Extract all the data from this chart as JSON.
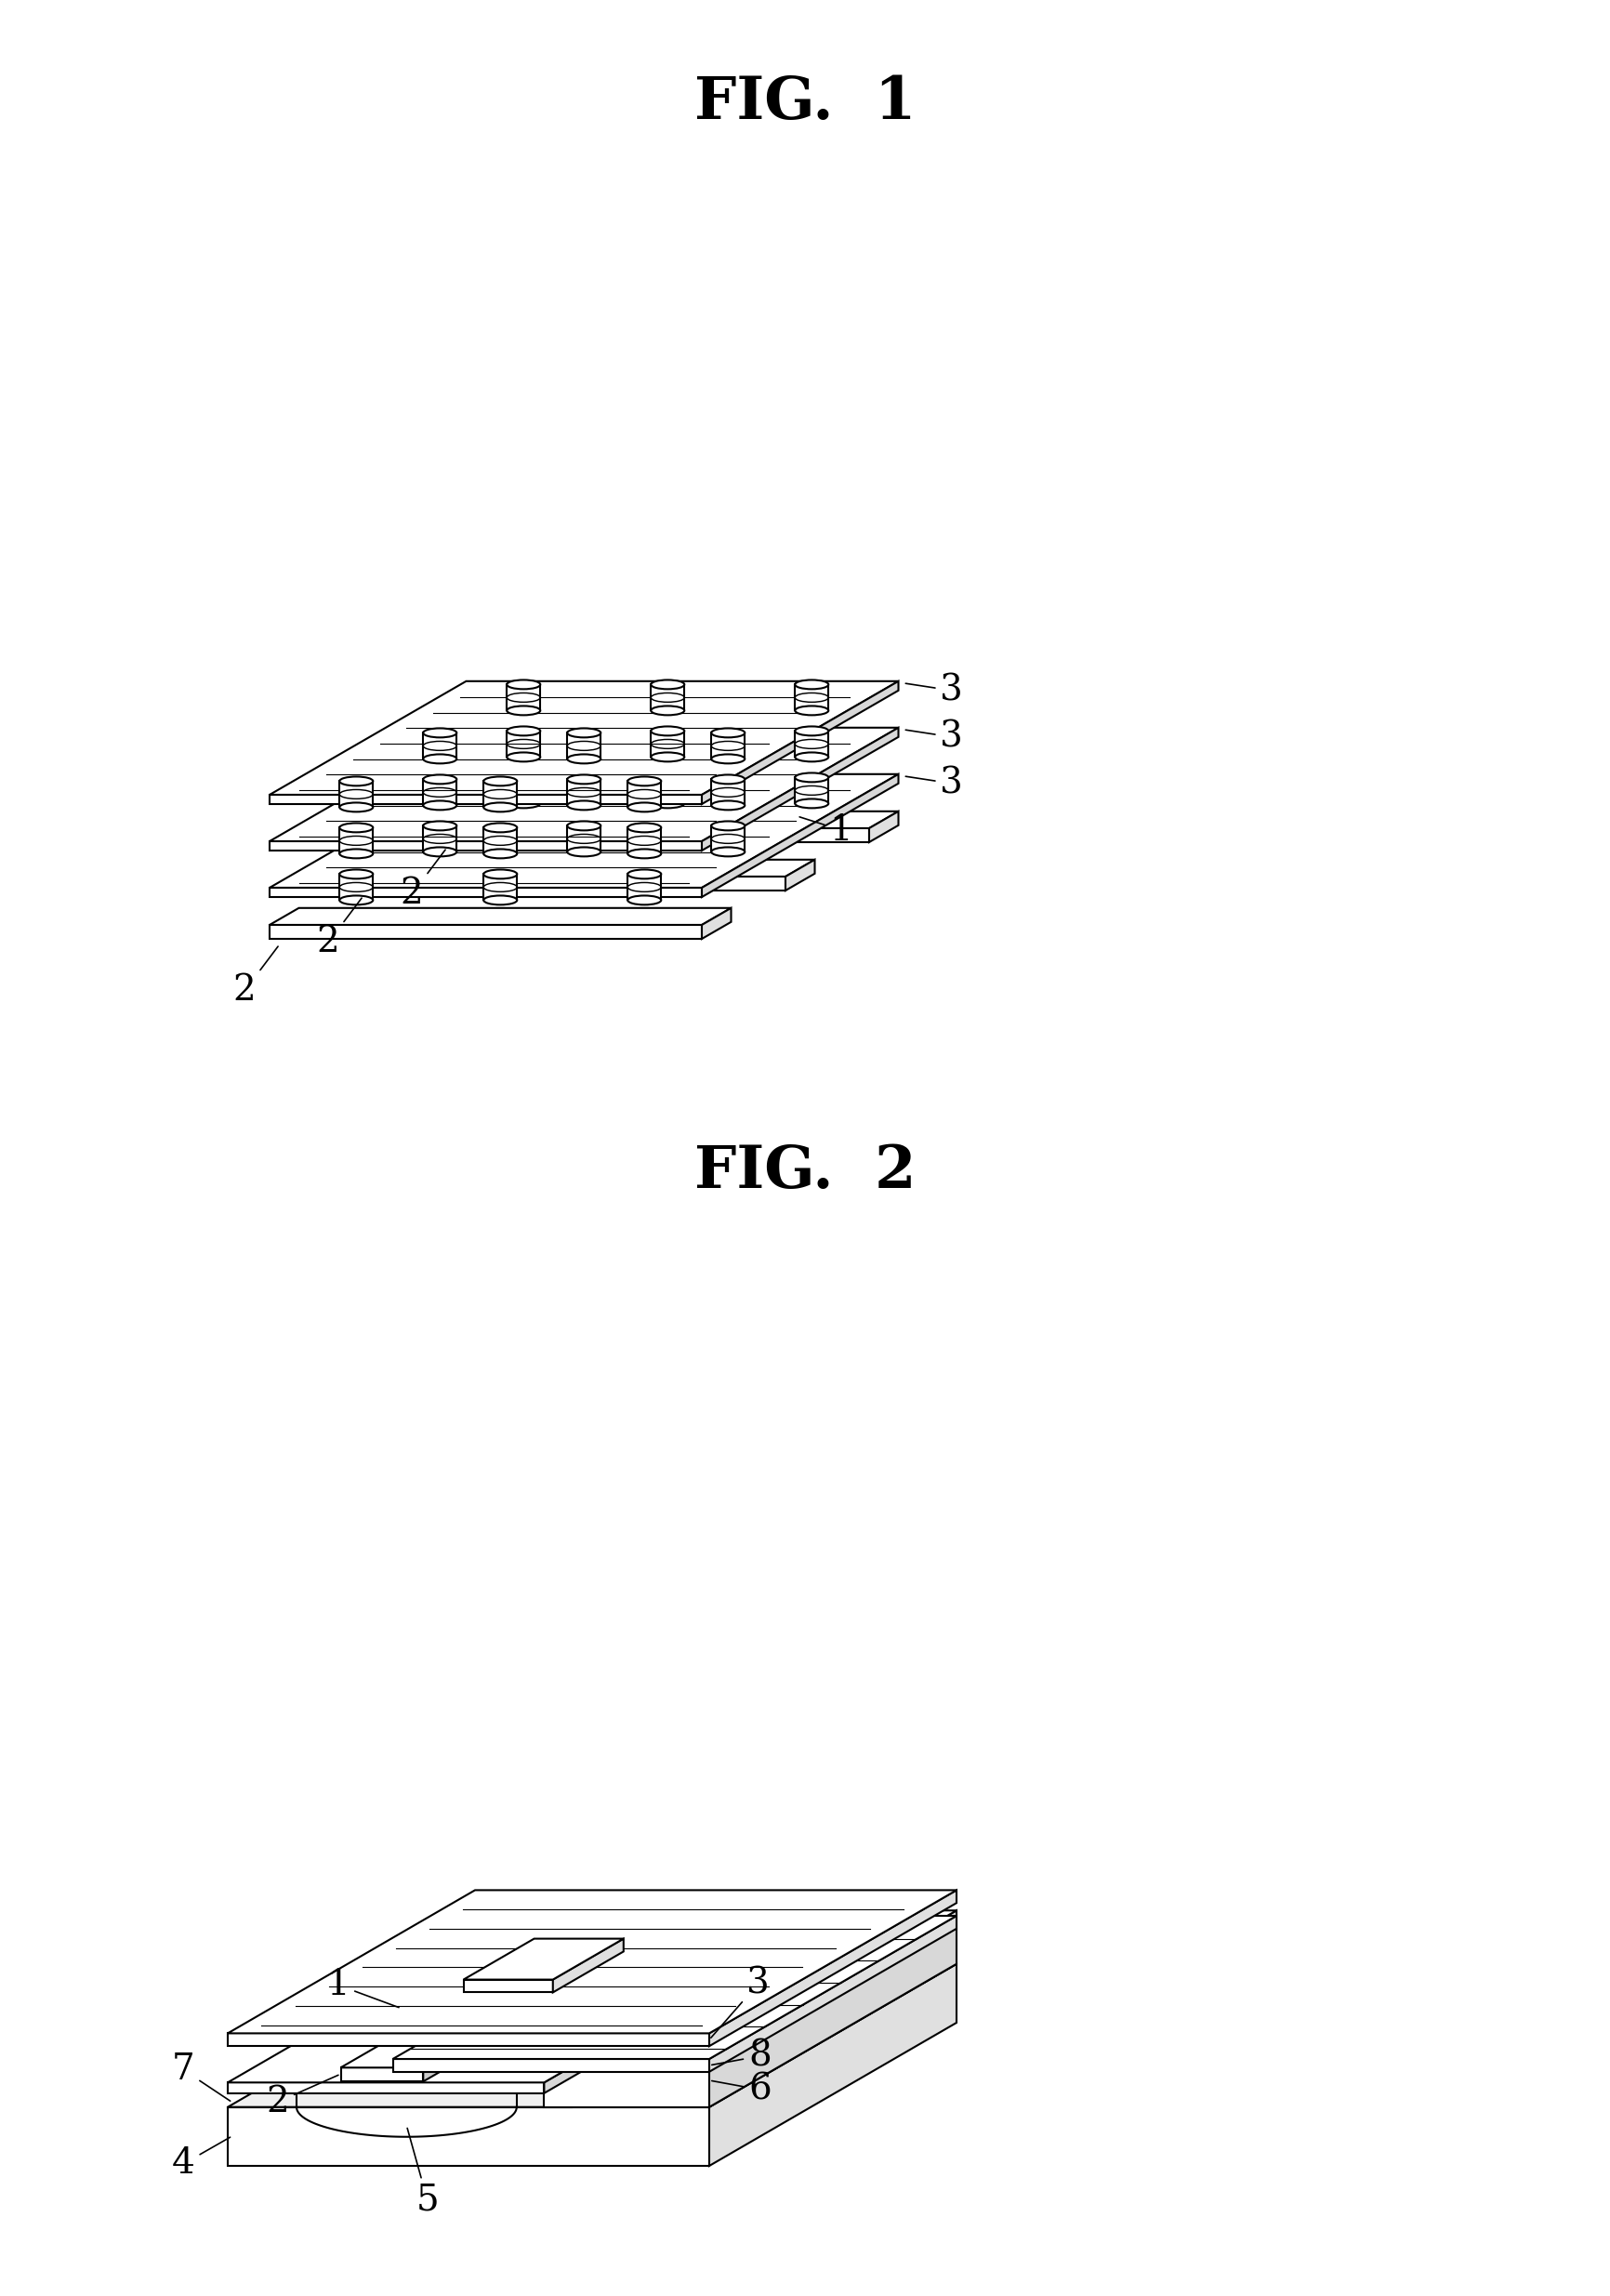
{
  "fig1_title": "FIG.  1",
  "fig2_title": "FIG.  2",
  "bg_color": "#ffffff",
  "line_color": "#000000",
  "lw": 1.5,
  "lw_thin": 0.8
}
